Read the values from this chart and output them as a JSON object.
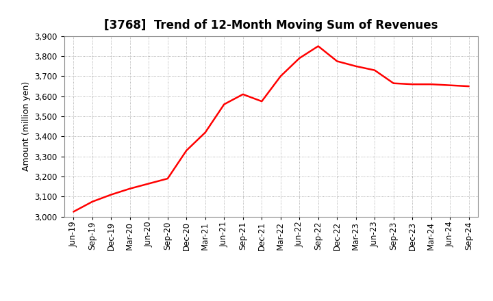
{
  "title": "[3768]  Trend of 12-Month Moving Sum of Revenues",
  "ylabel": "Amount (million yen)",
  "line_color": "#ff0000",
  "background_color": "#ffffff",
  "plot_bg_color": "#ffffff",
  "grid_color": "#999999",
  "ylim": [
    3000,
    3900
  ],
  "yticks": [
    3000,
    3100,
    3200,
    3300,
    3400,
    3500,
    3600,
    3700,
    3800,
    3900
  ],
  "x_labels": [
    "Jun-19",
    "Sep-19",
    "Dec-19",
    "Mar-20",
    "Jun-20",
    "Sep-20",
    "Dec-20",
    "Mar-21",
    "Jun-21",
    "Sep-21",
    "Dec-21",
    "Mar-22",
    "Jun-22",
    "Sep-22",
    "Dec-22",
    "Mar-23",
    "Jun-23",
    "Sep-23",
    "Dec-23",
    "Mar-24",
    "Jun-24",
    "Sep-24"
  ],
  "values": [
    3025,
    3075,
    3110,
    3140,
    3165,
    3190,
    3330,
    3420,
    3560,
    3610,
    3575,
    3700,
    3790,
    3850,
    3775,
    3750,
    3730,
    3665,
    3660,
    3660,
    3655,
    3650
  ],
  "title_fontsize": 12,
  "ylabel_fontsize": 9,
  "tick_fontsize": 8.5,
  "line_width": 1.8
}
